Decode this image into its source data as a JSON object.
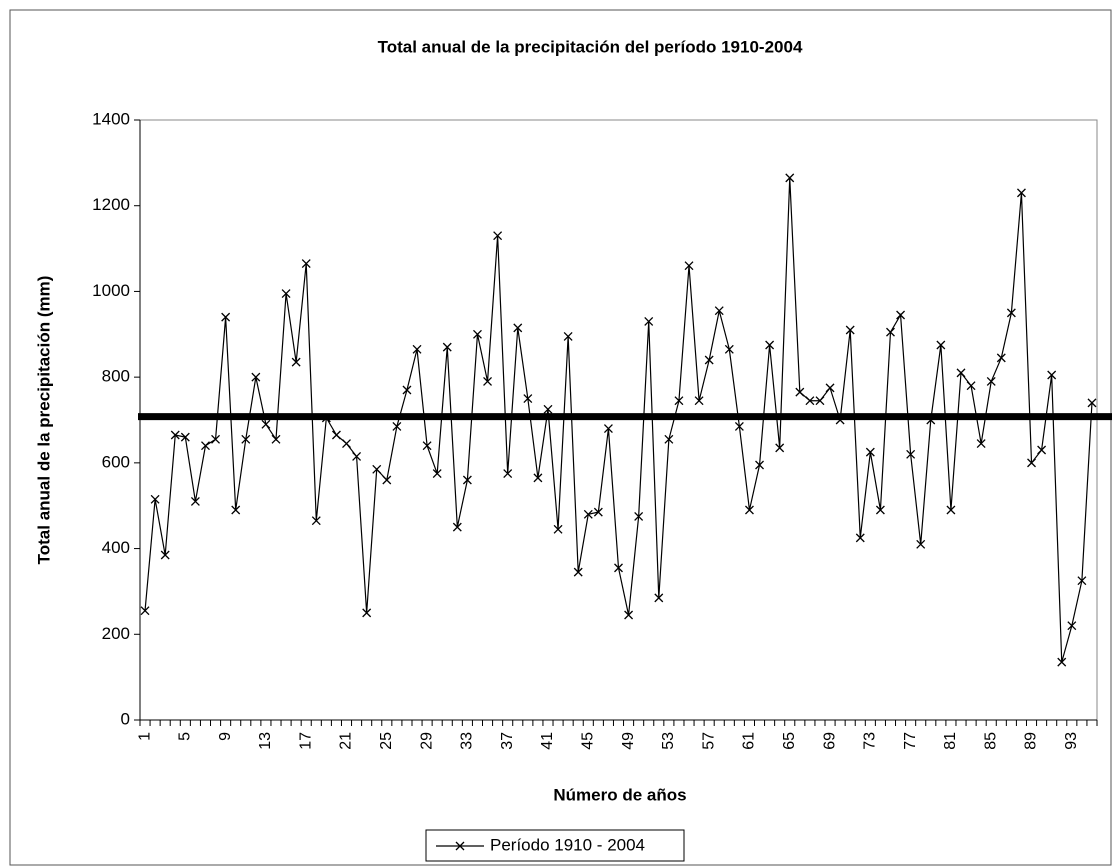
{
  "chart_data": {
    "type": "line",
    "title": "Total anual de la precipitación del período 1910-2004",
    "x_label": "Número de años",
    "y_label": "Total anual de la precipitación (mm)",
    "categories": [
      1,
      null,
      null,
      null,
      5,
      null,
      null,
      null,
      9,
      null,
      null,
      null,
      13,
      null,
      null,
      null,
      17,
      null,
      null,
      null,
      21,
      null,
      null,
      null,
      25,
      null,
      null,
      null,
      29,
      null,
      null,
      null,
      33,
      null,
      null,
      null,
      37,
      null,
      null,
      null,
      41,
      null,
      null,
      null,
      45,
      null,
      null,
      null,
      49,
      null,
      null,
      null,
      53,
      null,
      null,
      null,
      57,
      null,
      null,
      null,
      61,
      null,
      null,
      null,
      65,
      null,
      null,
      null,
      69,
      null,
      null,
      null,
      73,
      null,
      null,
      null,
      77,
      null,
      null,
      null,
      81,
      null,
      null,
      null,
      85,
      null,
      null,
      null,
      89,
      null,
      null,
      null,
      93,
      null,
      null
    ],
    "series": [
      {
        "name": "Período 1910 - 2004",
        "color": "#000000",
        "values": [
          255,
          515,
          385,
          665,
          660,
          510,
          640,
          655,
          940,
          490,
          655,
          800,
          690,
          655,
          995,
          835,
          1065,
          465,
          705,
          665,
          645,
          615,
          250,
          585,
          560,
          685,
          770,
          865,
          640,
          575,
          870,
          450,
          560,
          900,
          790,
          1130,
          575,
          915,
          750,
          565,
          725,
          445,
          895,
          345,
          480,
          485,
          680,
          355,
          245,
          475,
          930,
          285,
          655,
          745,
          1060,
          745,
          840,
          955,
          865,
          685,
          490,
          595,
          875,
          635,
          1265,
          765,
          745,
          745,
          775,
          700,
          910,
          425,
          625,
          490,
          905,
          945,
          620,
          410,
          700,
          875,
          490,
          810,
          780,
          645,
          790,
          845,
          950,
          1230,
          600,
          630,
          805,
          135,
          220,
          325,
          740
        ]
      }
    ],
    "reference_line": 708,
    "reference_color": "#000000",
    "ylim": [
      0,
      1400
    ],
    "yticks": [
      0,
      200,
      400,
      600,
      800,
      1000,
      1200,
      1400
    ],
    "grid": false,
    "legend": "bottom"
  }
}
